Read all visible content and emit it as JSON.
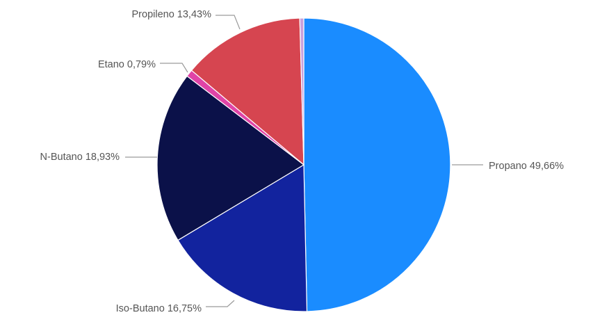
{
  "chart_data": {
    "type": "pie",
    "start_angle_deg": 0,
    "direction": "clockwise",
    "legend": "none",
    "slices": [
      {
        "label": "Propano",
        "value": 49.66,
        "text": "Propano 49,66%",
        "color": "#1a8cff"
      },
      {
        "label": "Iso-Butano",
        "value": 16.75,
        "text": "Iso-Butano 16,75%",
        "color": "#12239e"
      },
      {
        "label": "N-Butano",
        "value": 18.93,
        "text": "N-Butano 18,93%",
        "color": "#0b1149"
      },
      {
        "label": "Etano",
        "value": 0.79,
        "text": "Etano 0,79%",
        "color": "#e044a7"
      },
      {
        "label": "Propileno",
        "value": 13.43,
        "text": "Propileno 13,43%",
        "color": "#d64550"
      },
      {
        "label": "",
        "value": 0.44,
        "text": "",
        "color": "#c9a0dc"
      }
    ]
  }
}
